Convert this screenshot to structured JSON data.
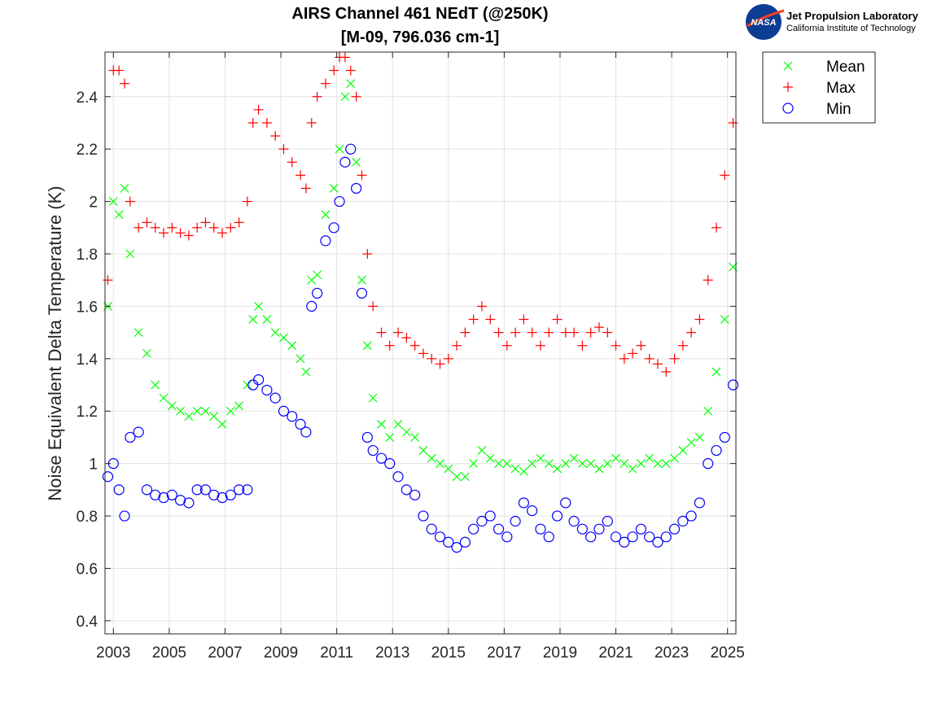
{
  "logo": {
    "nasa_text": "NASA",
    "org_name": "Jet Propulsion Laboratory",
    "org_sub": "California Institute of Technology"
  },
  "chart_data": {
    "type": "scatter",
    "title": "AIRS Channel 461 NEdT (@250K)",
    "subtitle": "[M-09, 796.036 cm-1]",
    "xlabel": "",
    "ylabel": "Noise Equivalent Delta Temperature (K)",
    "xlim": [
      2002.7,
      2025.3
    ],
    "ylim": [
      0.35,
      2.57
    ],
    "grid": true,
    "legend_position": "outside-top-right",
    "x_ticks": [
      2003,
      2005,
      2007,
      2009,
      2011,
      2013,
      2015,
      2017,
      2019,
      2021,
      2023,
      2025
    ],
    "x_tick_labels": [
      "2003",
      "2005",
      "2007",
      "2009",
      "2011",
      "2013",
      "2015",
      "2017",
      "2019",
      "2021",
      "2023",
      "2025"
    ],
    "y_ticks": [
      0.4,
      0.6,
      0.8,
      1.0,
      1.2,
      1.4,
      1.6,
      1.8,
      2.0,
      2.2,
      2.4
    ],
    "y_tick_labels": [
      "0.4",
      "0.6",
      "0.8",
      "1",
      "1.2",
      "1.4",
      "1.6",
      "1.8",
      "2",
      "2.2",
      "2.4"
    ],
    "series": [
      {
        "name": "Mean",
        "marker": "x",
        "color": "#00ff00",
        "x": [
          2002.8,
          2003.0,
          2003.2,
          2003.4,
          2003.6,
          2003.9,
          2004.2,
          2004.5,
          2004.8,
          2005.1,
          2005.4,
          2005.7,
          2006.0,
          2006.3,
          2006.6,
          2006.9,
          2007.2,
          2007.5,
          2007.8,
          2008.0,
          2008.2,
          2008.5,
          2008.8,
          2009.1,
          2009.4,
          2009.7,
          2009.9,
          2010.1,
          2010.3,
          2010.6,
          2010.9,
          2011.1,
          2011.3,
          2011.5,
          2011.7,
          2011.9,
          2012.1,
          2012.3,
          2012.6,
          2012.9,
          2013.2,
          2013.5,
          2013.8,
          2014.1,
          2014.4,
          2014.7,
          2015.0,
          2015.3,
          2015.6,
          2015.9,
          2016.2,
          2016.5,
          2016.8,
          2017.1,
          2017.4,
          2017.7,
          2018.0,
          2018.3,
          2018.6,
          2018.9,
          2019.2,
          2019.5,
          2019.8,
          2020.1,
          2020.4,
          2020.7,
          2021.0,
          2021.3,
          2021.6,
          2021.9,
          2022.2,
          2022.5,
          2022.8,
          2023.1,
          2023.4,
          2023.7,
          2024.0,
          2024.3,
          2024.6,
          2024.9,
          2025.2
        ],
        "y": [
          1.6,
          2.0,
          1.95,
          2.05,
          1.8,
          1.5,
          1.42,
          1.3,
          1.25,
          1.22,
          1.2,
          1.18,
          1.2,
          1.2,
          1.18,
          1.15,
          1.2,
          1.22,
          1.3,
          1.55,
          1.6,
          1.55,
          1.5,
          1.48,
          1.45,
          1.4,
          1.35,
          1.7,
          1.72,
          1.95,
          2.05,
          2.2,
          2.4,
          2.45,
          2.15,
          1.7,
          1.45,
          1.25,
          1.15,
          1.1,
          1.15,
          1.12,
          1.1,
          1.05,
          1.02,
          1.0,
          0.98,
          0.95,
          0.95,
          1.0,
          1.05,
          1.02,
          1.0,
          1.0,
          0.98,
          0.97,
          1.0,
          1.02,
          1.0,
          0.98,
          1.0,
          1.02,
          1.0,
          1.0,
          0.98,
          1.0,
          1.02,
          1.0,
          0.98,
          1.0,
          1.02,
          1.0,
          1.0,
          1.02,
          1.05,
          1.08,
          1.1,
          1.2,
          1.35,
          1.55,
          1.75
        ]
      },
      {
        "name": "Max",
        "marker": "+",
        "color": "#ff0000",
        "x": [
          2002.8,
          2003.0,
          2003.2,
          2003.4,
          2003.6,
          2003.9,
          2004.2,
          2004.5,
          2004.8,
          2005.1,
          2005.4,
          2005.7,
          2006.0,
          2006.3,
          2006.6,
          2006.9,
          2007.2,
          2007.5,
          2007.8,
          2008.0,
          2008.2,
          2008.5,
          2008.8,
          2009.1,
          2009.4,
          2009.7,
          2009.9,
          2010.1,
          2010.3,
          2010.6,
          2010.9,
          2011.1,
          2011.3,
          2011.5,
          2011.7,
          2011.9,
          2012.1,
          2012.3,
          2012.6,
          2012.9,
          2013.2,
          2013.5,
          2013.8,
          2014.1,
          2014.4,
          2014.7,
          2015.0,
          2015.3,
          2015.6,
          2015.9,
          2016.2,
          2016.5,
          2016.8,
          2017.1,
          2017.4,
          2017.7,
          2018.0,
          2018.3,
          2018.6,
          2018.9,
          2019.2,
          2019.5,
          2019.8,
          2020.1,
          2020.4,
          2020.7,
          2021.0,
          2021.3,
          2021.6,
          2021.9,
          2022.2,
          2022.5,
          2022.8,
          2023.1,
          2023.4,
          2023.7,
          2024.0,
          2024.3,
          2024.6,
          2024.9,
          2025.2
        ],
        "y": [
          1.7,
          2.5,
          2.5,
          2.45,
          2.0,
          1.9,
          1.92,
          1.9,
          1.88,
          1.9,
          1.88,
          1.87,
          1.9,
          1.92,
          1.9,
          1.88,
          1.9,
          1.92,
          2.0,
          2.3,
          2.35,
          2.3,
          2.25,
          2.2,
          2.15,
          2.1,
          2.05,
          2.3,
          2.4,
          2.45,
          2.5,
          2.55,
          2.55,
          2.5,
          2.4,
          2.1,
          1.8,
          1.6,
          1.5,
          1.45,
          1.5,
          1.48,
          1.45,
          1.42,
          1.4,
          1.38,
          1.4,
          1.45,
          1.5,
          1.55,
          1.6,
          1.55,
          1.5,
          1.45,
          1.5,
          1.55,
          1.5,
          1.45,
          1.5,
          1.55,
          1.5,
          1.5,
          1.45,
          1.5,
          1.52,
          1.5,
          1.45,
          1.4,
          1.42,
          1.45,
          1.4,
          1.38,
          1.35,
          1.4,
          1.45,
          1.5,
          1.55,
          1.7,
          1.9,
          2.1,
          2.3
        ]
      },
      {
        "name": "Min",
        "marker": "o",
        "color": "#0000ff",
        "x": [
          2002.8,
          2003.0,
          2003.2,
          2003.4,
          2003.6,
          2003.9,
          2004.2,
          2004.5,
          2004.8,
          2005.1,
          2005.4,
          2005.7,
          2006.0,
          2006.3,
          2006.6,
          2006.9,
          2007.2,
          2007.5,
          2007.8,
          2008.0,
          2008.2,
          2008.5,
          2008.8,
          2009.1,
          2009.4,
          2009.7,
          2009.9,
          2010.1,
          2010.3,
          2010.6,
          2010.9,
          2011.1,
          2011.3,
          2011.5,
          2011.7,
          2011.9,
          2012.1,
          2012.3,
          2012.6,
          2012.9,
          2013.2,
          2013.5,
          2013.8,
          2014.1,
          2014.4,
          2014.7,
          2015.0,
          2015.3,
          2015.6,
          2015.9,
          2016.2,
          2016.5,
          2016.8,
          2017.1,
          2017.4,
          2017.7,
          2018.0,
          2018.3,
          2018.6,
          2018.9,
          2019.2,
          2019.5,
          2019.8,
          2020.1,
          2020.4,
          2020.7,
          2021.0,
          2021.3,
          2021.6,
          2021.9,
          2022.2,
          2022.5,
          2022.8,
          2023.1,
          2023.4,
          2023.7,
          2024.0,
          2024.3,
          2024.6,
          2024.9,
          2025.2
        ],
        "y": [
          0.95,
          1.0,
          0.9,
          0.8,
          1.1,
          1.12,
          0.9,
          0.88,
          0.87,
          0.88,
          0.86,
          0.85,
          0.9,
          0.9,
          0.88,
          0.87,
          0.88,
          0.9,
          0.9,
          1.3,
          1.32,
          1.28,
          1.25,
          1.2,
          1.18,
          1.15,
          1.12,
          1.6,
          1.65,
          1.85,
          1.9,
          2.0,
          2.15,
          2.2,
          2.05,
          1.65,
          1.1,
          1.05,
          1.02,
          1.0,
          0.95,
          0.9,
          0.88,
          0.8,
          0.75,
          0.72,
          0.7,
          0.68,
          0.7,
          0.75,
          0.78,
          0.8,
          0.75,
          0.72,
          0.78,
          0.85,
          0.82,
          0.75,
          0.72,
          0.8,
          0.85,
          0.78,
          0.75,
          0.72,
          0.75,
          0.78,
          0.72,
          0.7,
          0.72,
          0.75,
          0.72,
          0.7,
          0.72,
          0.75,
          0.78,
          0.8,
          0.85,
          1.0,
          1.05,
          1.1,
          1.3
        ]
      }
    ]
  }
}
